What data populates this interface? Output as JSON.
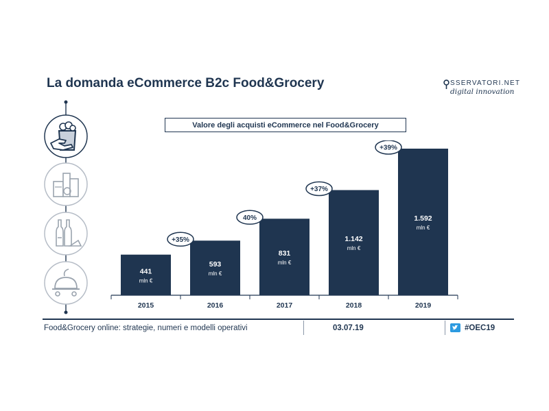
{
  "slide": {
    "title": "La domanda eCommerce B2c Food&Grocery"
  },
  "logo": {
    "brand": "SSERVATORI.NET",
    "tagline": "digital innovation"
  },
  "timeline_icons": [
    "shopping-bag-hand-icon",
    "food-packages-icon",
    "wine-bottles-cheese-icon",
    "delivery-cloche-icon"
  ],
  "chart_data": {
    "type": "bar",
    "title": "Valore degli acquisti eCommerce nel Food&Grocery",
    "categories": [
      "2015",
      "2016",
      "2017",
      "2018",
      "2019"
    ],
    "values": [
      441,
      593,
      831,
      1142,
      1592
    ],
    "value_labels": [
      "441",
      "593",
      "831",
      "1.142",
      "1.592"
    ],
    "unit_label": "mln €",
    "growth_labels": [
      "+35%",
      "40%",
      "+37%",
      "+39%"
    ],
    "ylim": [
      0,
      1592
    ],
    "bar_color": "#1f3550",
    "grid": false
  },
  "footer": {
    "subtitle": "Food&Grocery online: strategie, numeri e modelli operativi",
    "date": "03.07.19",
    "hashtag": "#OEC19"
  }
}
